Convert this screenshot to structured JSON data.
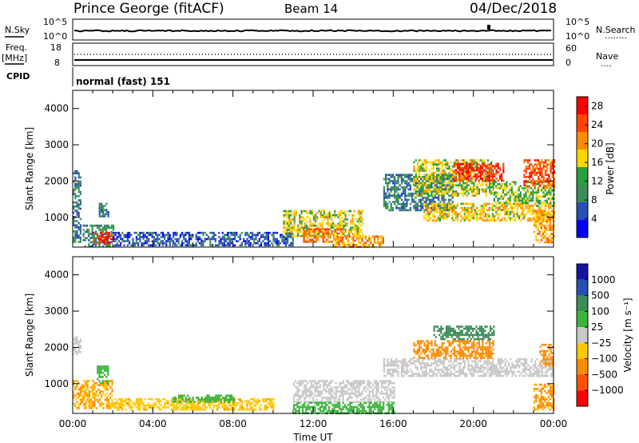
{
  "header": {
    "station": "Prince George (fitACF)",
    "beam": "Beam 14",
    "date": "04/Dec/2018"
  },
  "top_panels": {
    "nsky": {
      "label": "N.Sky",
      "ticks": [
        "10^5",
        "10^0"
      ],
      "right_ticks": [
        "10^5",
        "10^0"
      ],
      "right_label": "N.Search",
      "right_legend": "........"
    },
    "freq": {
      "label_line1": "Freq.",
      "label_line2": "[MHz]",
      "ticks": [
        "18",
        "8"
      ],
      "right_ticks": [
        "60",
        "0"
      ],
      "right_label": "Nave",
      "right_legend": "...."
    },
    "cpid": {
      "label": "CPID",
      "text": "normal (fast) 151"
    }
  },
  "colors": {
    "power_scale": [
      "#0000ff",
      "#2850b4",
      "#3c8c5a",
      "#28a03c",
      "#ffd700",
      "#ff8c00",
      "#ff4500",
      "#ff0000"
    ],
    "velocity_scale": [
      "#1414a0",
      "#2850b4",
      "#3c8c5a",
      "#3cb43c",
      "#c8c8c8",
      "#ffc800",
      "#ff8c00",
      "#ff5000",
      "#ff0000"
    ]
  },
  "chart_data": [
    {
      "type": "heatmap",
      "ylabel": "Slant Range [km]",
      "xlabel": "",
      "ylim": [
        180,
        4500
      ],
      "yticks": [
        "1000",
        "2000",
        "3000",
        "4000"
      ],
      "colorbar": {
        "label": "Power [dB]",
        "ticks": [
          "4",
          "8",
          "12",
          "16",
          "20",
          "24",
          "28"
        ],
        "range": [
          0,
          30
        ]
      },
      "echo_regions": [
        {
          "t0": 0.0,
          "t1": 0.4,
          "r0": 300,
          "r1": 2300,
          "value": 8
        },
        {
          "t0": 0.5,
          "t1": 2.0,
          "r0": 200,
          "r1": 800,
          "value": 10
        },
        {
          "t0": 1.0,
          "t1": 2.0,
          "r0": 300,
          "r1": 600,
          "value": 26
        },
        {
          "t0": 1.3,
          "t1": 1.8,
          "r0": 1000,
          "r1": 1400,
          "value": 8
        },
        {
          "t0": 2.0,
          "t1": 11.0,
          "r0": 200,
          "r1": 600,
          "value": 6
        },
        {
          "t0": 10.5,
          "t1": 14.5,
          "r0": 500,
          "r1": 1200,
          "value": 16
        },
        {
          "t0": 11.5,
          "t1": 13.5,
          "r0": 300,
          "r1": 700,
          "value": 22
        },
        {
          "t0": 13.0,
          "t1": 15.5,
          "r0": 200,
          "r1": 500,
          "value": 20
        },
        {
          "t0": 15.5,
          "t1": 19.0,
          "r0": 1200,
          "r1": 2200,
          "value": 8
        },
        {
          "t0": 17.0,
          "t1": 21.0,
          "r0": 1600,
          "r1": 2600,
          "value": 16
        },
        {
          "t0": 19.0,
          "t1": 21.5,
          "r0": 2000,
          "r1": 2500,
          "value": 26
        },
        {
          "t0": 17.5,
          "t1": 24.0,
          "r0": 900,
          "r1": 1400,
          "value": 18
        },
        {
          "t0": 21.0,
          "t1": 24.0,
          "r0": 1400,
          "r1": 2000,
          "value": 14
        },
        {
          "t0": 22.5,
          "t1": 24.0,
          "r0": 1800,
          "r1": 2600,
          "value": 24
        },
        {
          "t0": 23.0,
          "t1": 24.0,
          "r0": 300,
          "r1": 1200,
          "value": 20
        }
      ]
    },
    {
      "type": "heatmap",
      "ylabel": "Slant Range [km]",
      "xlabel": "Time UT",
      "ylim": [
        180,
        4500
      ],
      "yticks": [
        "1000",
        "2000",
        "3000",
        "4000"
      ],
      "xticks": [
        "00:00",
        "04:00",
        "08:00",
        "12:00",
        "16:00",
        "20:00",
        "00:00"
      ],
      "colorbar": {
        "label": "Velocity [m s⁻¹]",
        "ticks": [
          "1000",
          "500",
          "100",
          "25",
          "−25",
          "−100",
          "−500",
          "−1000"
        ]
      },
      "echo_regions": [
        {
          "t0": 0.0,
          "t1": 0.4,
          "r0": 1800,
          "r1": 2300,
          "value": 0
        },
        {
          "t0": 0.0,
          "t1": 2.0,
          "r0": 300,
          "r1": 1100,
          "value": -100
        },
        {
          "t0": 1.2,
          "t1": 1.8,
          "r0": 1000,
          "r1": 1500,
          "value": 50
        },
        {
          "t0": 2.0,
          "t1": 10.0,
          "r0": 300,
          "r1": 600,
          "value": -80
        },
        {
          "t0": 5.0,
          "t1": 8.0,
          "r0": 500,
          "r1": 700,
          "value": 60
        },
        {
          "t0": 11.0,
          "t1": 16.0,
          "r0": 500,
          "r1": 1100,
          "value": 0
        },
        {
          "t0": 11.0,
          "t1": 16.0,
          "r0": 200,
          "r1": 500,
          "value": 60
        },
        {
          "t0": 15.5,
          "t1": 24.0,
          "r0": 1200,
          "r1": 1700,
          "value": 0
        },
        {
          "t0": 17.0,
          "t1": 21.0,
          "r0": 1700,
          "r1": 2200,
          "value": -150
        },
        {
          "t0": 18.0,
          "t1": 21.0,
          "r0": 2200,
          "r1": 2600,
          "value": 300
        },
        {
          "t0": 23.3,
          "t1": 24.0,
          "r0": 1500,
          "r1": 2100,
          "value": -200
        },
        {
          "t0": 23.0,
          "t1": 24.0,
          "r0": 300,
          "r1": 1000,
          "value": -120
        }
      ]
    }
  ]
}
